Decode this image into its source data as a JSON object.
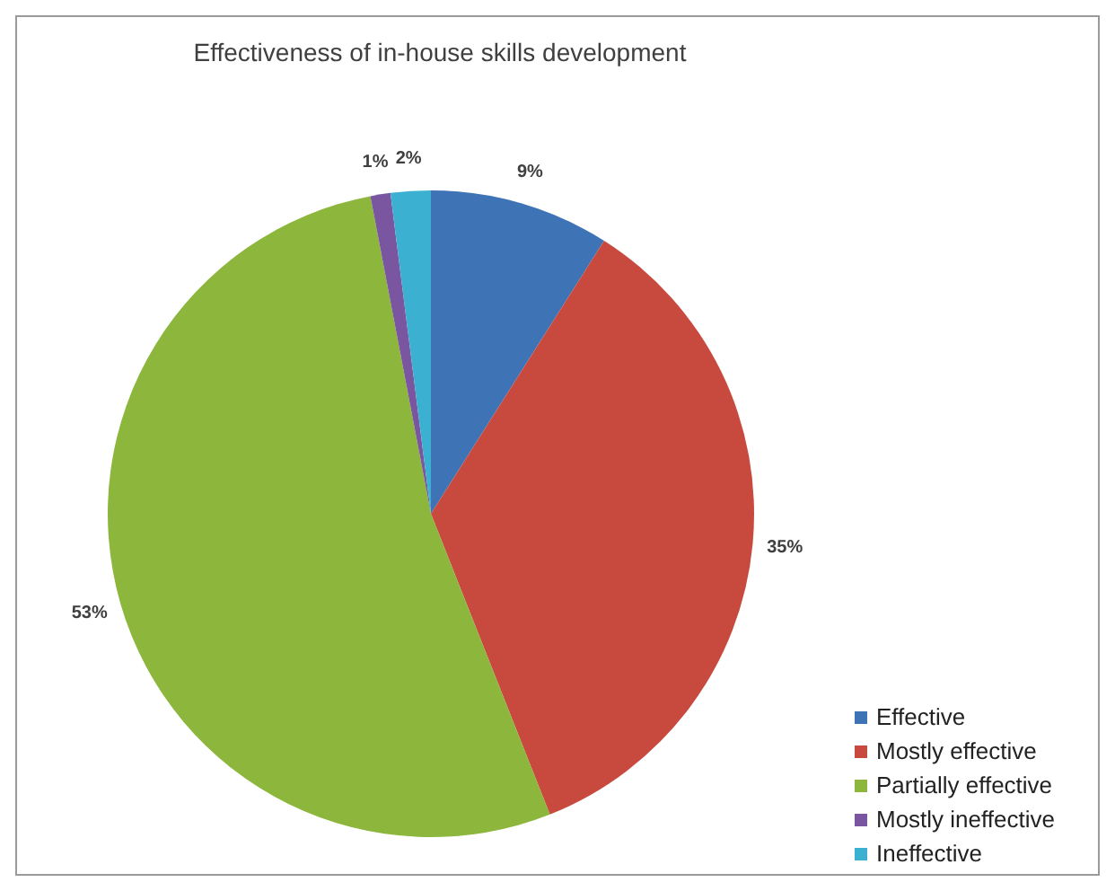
{
  "chart_data": {
    "type": "pie",
    "title": "Effectiveness of in-house skills development",
    "categories": [
      "Effective",
      "Mostly effective",
      "Partially effective",
      "Mostly ineffective",
      "Ineffective"
    ],
    "values": [
      9,
      35,
      53,
      1,
      2
    ],
    "colors": [
      "#3e73b5",
      "#c8493e",
      "#8cb63c",
      "#7b56a0",
      "#3cb0d0"
    ],
    "value_labels": [
      "9%",
      "35%",
      "53%",
      "1%",
      "2%"
    ],
    "legend": "bottom right"
  }
}
